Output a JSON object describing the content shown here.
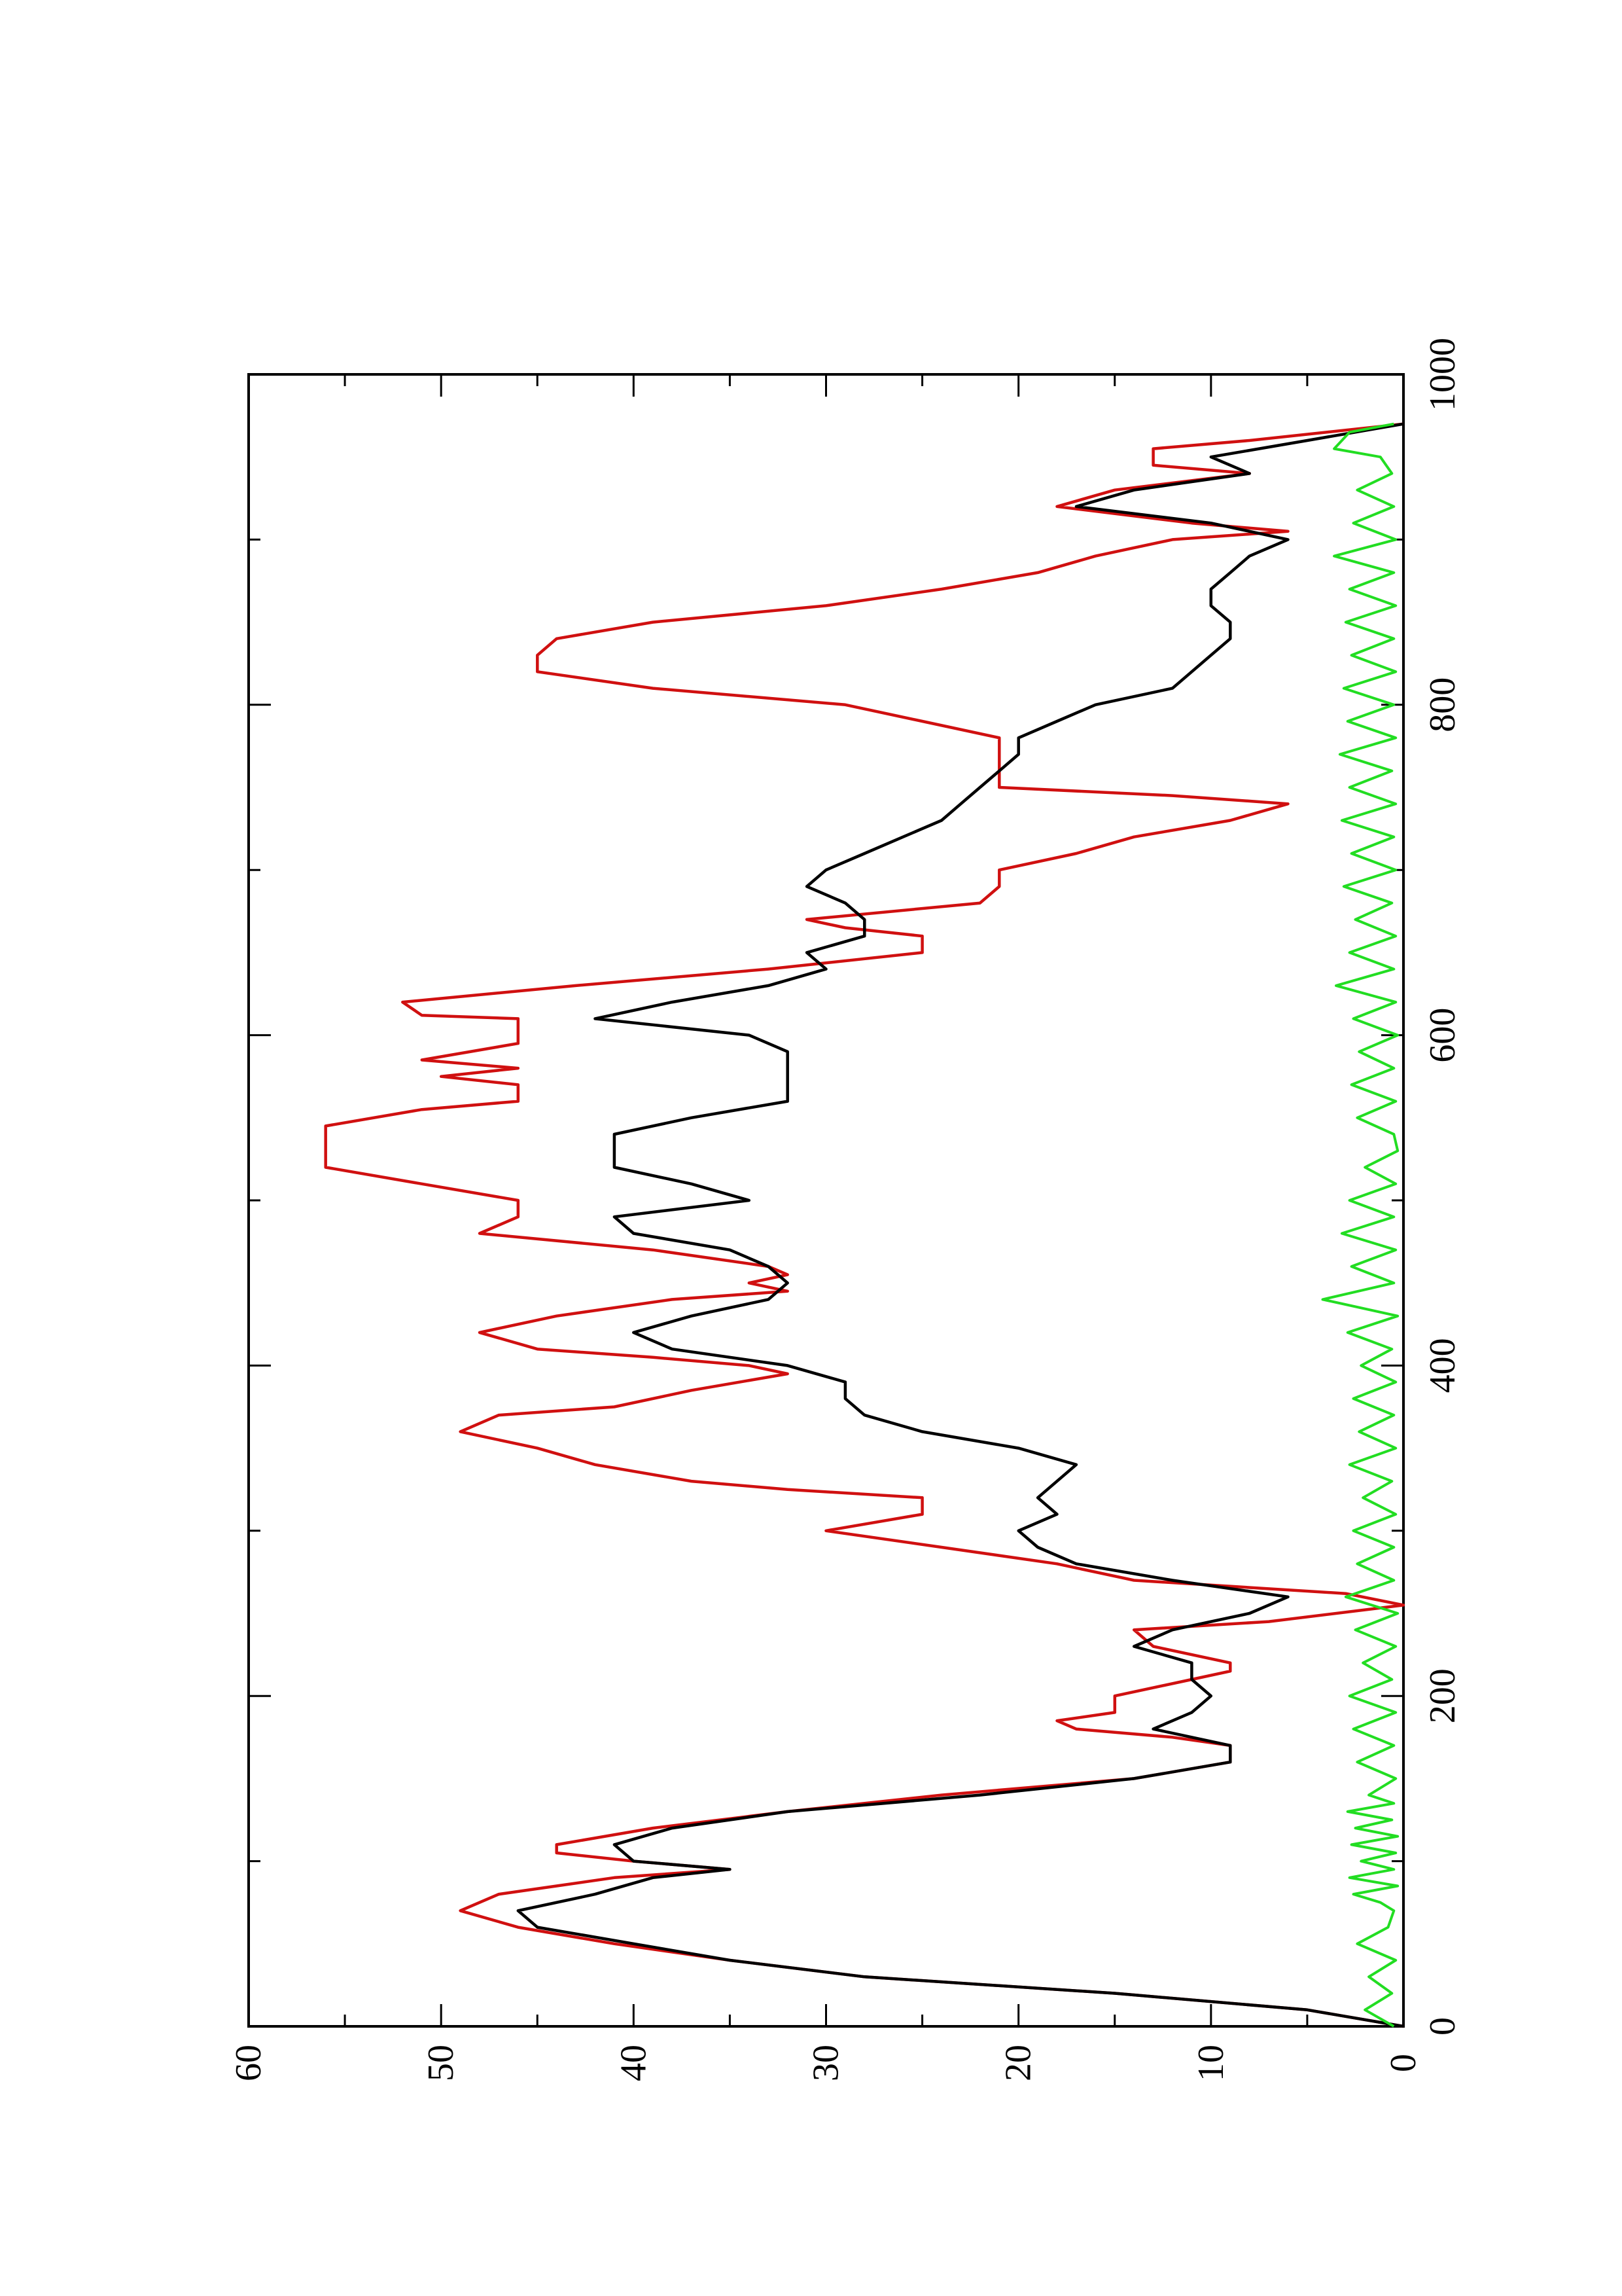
{
  "chart_data": {
    "type": "line",
    "orientation": "rotated-90-ccw",
    "title": "",
    "xlabel": "",
    "ylabel": "",
    "xlim": [
      0,
      1000
    ],
    "ylim": [
      0,
      60
    ],
    "grid": false,
    "legend": "none",
    "x_ticks": [
      0,
      200,
      400,
      600,
      800,
      1000
    ],
    "x_tick_labels": [
      "0",
      "200",
      "400",
      "600",
      "800",
      "1000"
    ],
    "x_minor_ticks": [
      100,
      300,
      500,
      700,
      900
    ],
    "y_ticks": [
      0,
      10,
      20,
      30,
      40,
      50,
      60
    ],
    "y_tick_labels": [
      "0",
      "10",
      "20",
      "30",
      "40",
      "50",
      "60"
    ],
    "y_minor_ticks": [
      5,
      15,
      25,
      35,
      45,
      55
    ],
    "series": [
      {
        "color": "#d01010",
        "points": [
          [
            0,
            0
          ],
          [
            10,
            5
          ],
          [
            20,
            15
          ],
          [
            30,
            28
          ],
          [
            40,
            35
          ],
          [
            50,
            41
          ],
          [
            60,
            46
          ],
          [
            70,
            49
          ],
          [
            80,
            47
          ],
          [
            85,
            44
          ],
          [
            90,
            41
          ],
          [
            95,
            35
          ],
          [
            100,
            40
          ],
          [
            105,
            44
          ],
          [
            110,
            44
          ],
          [
            120,
            39
          ],
          [
            130,
            32
          ],
          [
            140,
            24
          ],
          [
            150,
            14
          ],
          [
            160,
            9
          ],
          [
            170,
            9
          ],
          [
            175,
            12
          ],
          [
            180,
            17
          ],
          [
            185,
            18
          ],
          [
            190,
            15
          ],
          [
            200,
            15
          ],
          [
            210,
            11
          ],
          [
            215,
            9
          ],
          [
            220,
            9
          ],
          [
            230,
            13
          ],
          [
            240,
            14
          ],
          [
            245,
            7
          ],
          [
            255,
            0
          ],
          [
            262,
            3
          ],
          [
            270,
            14
          ],
          [
            280,
            18
          ],
          [
            290,
            24
          ],
          [
            300,
            30
          ],
          [
            310,
            25
          ],
          [
            320,
            25
          ],
          [
            325,
            32
          ],
          [
            330,
            37
          ],
          [
            340,
            42
          ],
          [
            350,
            45
          ],
          [
            360,
            49
          ],
          [
            370,
            47
          ],
          [
            375,
            41
          ],
          [
            385,
            37
          ],
          [
            395,
            32
          ],
          [
            400,
            34
          ],
          [
            405,
            39
          ],
          [
            410,
            45
          ],
          [
            420,
            48
          ],
          [
            430,
            44
          ],
          [
            440,
            38
          ],
          [
            445,
            32
          ],
          [
            450,
            34
          ],
          [
            455,
            32
          ],
          [
            460,
            33
          ],
          [
            470,
            39
          ],
          [
            480,
            48
          ],
          [
            490,
            46
          ],
          [
            500,
            46
          ],
          [
            510,
            51
          ],
          [
            520,
            56
          ],
          [
            530,
            56
          ],
          [
            545,
            56
          ],
          [
            555,
            51
          ],
          [
            560,
            46
          ],
          [
            570,
            46
          ],
          [
            575,
            50
          ],
          [
            580,
            46
          ],
          [
            585,
            51
          ],
          [
            595,
            46
          ],
          [
            610,
            46
          ],
          [
            612,
            51
          ],
          [
            620,
            52
          ],
          [
            630,
            43
          ],
          [
            640,
            33
          ],
          [
            650,
            25
          ],
          [
            660,
            25
          ],
          [
            665,
            29
          ],
          [
            670,
            31
          ],
          [
            680,
            22
          ],
          [
            690,
            21
          ],
          [
            700,
            21
          ],
          [
            710,
            17
          ],
          [
            720,
            14
          ],
          [
            730,
            9
          ],
          [
            740,
            6
          ],
          [
            745,
            12
          ],
          [
            750,
            21
          ],
          [
            760,
            21
          ],
          [
            780,
            21
          ],
          [
            790,
            25
          ],
          [
            800,
            29
          ],
          [
            810,
            39
          ],
          [
            820,
            45
          ],
          [
            830,
            45
          ],
          [
            840,
            44
          ],
          [
            850,
            39
          ],
          [
            860,
            30
          ],
          [
            870,
            24
          ],
          [
            880,
            19
          ],
          [
            890,
            16
          ],
          [
            900,
            12
          ],
          [
            905,
            6
          ],
          [
            910,
            11
          ],
          [
            920,
            18
          ],
          [
            930,
            15
          ],
          [
            940,
            8
          ],
          [
            945,
            13
          ],
          [
            955,
            13
          ],
          [
            960,
            8
          ],
          [
            970,
            0
          ]
        ]
      },
      {
        "color": "#000000",
        "points": [
          [
            0,
            0
          ],
          [
            10,
            5
          ],
          [
            20,
            15
          ],
          [
            30,
            28
          ],
          [
            40,
            35
          ],
          [
            50,
            40
          ],
          [
            60,
            45
          ],
          [
            70,
            46
          ],
          [
            80,
            42
          ],
          [
            90,
            39
          ],
          [
            95,
            35
          ],
          [
            100,
            40
          ],
          [
            110,
            41
          ],
          [
            120,
            38
          ],
          [
            130,
            32
          ],
          [
            140,
            22
          ],
          [
            150,
            14
          ],
          [
            160,
            9
          ],
          [
            170,
            9
          ],
          [
            180,
            13
          ],
          [
            190,
            11
          ],
          [
            200,
            10
          ],
          [
            210,
            11
          ],
          [
            220,
            11
          ],
          [
            230,
            14
          ],
          [
            240,
            12
          ],
          [
            250,
            8
          ],
          [
            260,
            6
          ],
          [
            270,
            12
          ],
          [
            280,
            17
          ],
          [
            290,
            19
          ],
          [
            300,
            20
          ],
          [
            310,
            18
          ],
          [
            320,
            19
          ],
          [
            330,
            18
          ],
          [
            340,
            17
          ],
          [
            350,
            20
          ],
          [
            360,
            25
          ],
          [
            370,
            28
          ],
          [
            380,
            29
          ],
          [
            390,
            29
          ],
          [
            400,
            32
          ],
          [
            410,
            38
          ],
          [
            420,
            40
          ],
          [
            430,
            37
          ],
          [
            440,
            33
          ],
          [
            450,
            32
          ],
          [
            460,
            33
          ],
          [
            470,
            35
          ],
          [
            480,
            40
          ],
          [
            490,
            41
          ],
          [
            500,
            34
          ],
          [
            510,
            37
          ],
          [
            520,
            41
          ],
          [
            530,
            41
          ],
          [
            540,
            41
          ],
          [
            550,
            37
          ],
          [
            560,
            32
          ],
          [
            570,
            32
          ],
          [
            580,
            32
          ],
          [
            590,
            32
          ],
          [
            600,
            34
          ],
          [
            610,
            42
          ],
          [
            620,
            38
          ],
          [
            630,
            33
          ],
          [
            640,
            30
          ],
          [
            650,
            31
          ],
          [
            660,
            28
          ],
          [
            670,
            28
          ],
          [
            680,
            29
          ],
          [
            690,
            31
          ],
          [
            700,
            30
          ],
          [
            710,
            28
          ],
          [
            720,
            26
          ],
          [
            730,
            24
          ],
          [
            740,
            23
          ],
          [
            750,
            22
          ],
          [
            760,
            21
          ],
          [
            770,
            20
          ],
          [
            780,
            20
          ],
          [
            790,
            18
          ],
          [
            800,
            16
          ],
          [
            810,
            12
          ],
          [
            820,
            11
          ],
          [
            830,
            10
          ],
          [
            840,
            9
          ],
          [
            850,
            9
          ],
          [
            860,
            10
          ],
          [
            870,
            10
          ],
          [
            880,
            9
          ],
          [
            890,
            8
          ],
          [
            900,
            6
          ],
          [
            910,
            10
          ],
          [
            920,
            17
          ],
          [
            930,
            14
          ],
          [
            940,
            8
          ],
          [
            950,
            10
          ],
          [
            960,
            5
          ],
          [
            970,
            0
          ]
        ]
      },
      {
        "color": "#22dd22",
        "points": [
          [
            0,
            0.5
          ],
          [
            10,
            2.0
          ],
          [
            20,
            0.6
          ],
          [
            30,
            1.8
          ],
          [
            40,
            0.4
          ],
          [
            50,
            2.4
          ],
          [
            60,
            0.8
          ],
          [
            70,
            0.5
          ],
          [
            75,
            1.2
          ],
          [
            80,
            2.6
          ],
          [
            85,
            0.3
          ],
          [
            90,
            2.8
          ],
          [
            95,
            0.5
          ],
          [
            100,
            2.2
          ],
          [
            105,
            0.4
          ],
          [
            110,
            2.7
          ],
          [
            115,
            0.3
          ],
          [
            120,
            2.5
          ],
          [
            125,
            0.6
          ],
          [
            130,
            2.9
          ],
          [
            135,
            0.5
          ],
          [
            140,
            1.8
          ],
          [
            150,
            0.4
          ],
          [
            160,
            2.4
          ],
          [
            170,
            0.5
          ],
          [
            180,
            2.6
          ],
          [
            190,
            0.4
          ],
          [
            200,
            2.8
          ],
          [
            210,
            0.6
          ],
          [
            220,
            2.1
          ],
          [
            230,
            0.4
          ],
          [
            240,
            2.5
          ],
          [
            250,
            0.3
          ],
          [
            260,
            3.0
          ],
          [
            270,
            0.5
          ],
          [
            280,
            2.4
          ],
          [
            290,
            0.5
          ],
          [
            300,
            2.6
          ],
          [
            310,
            0.4
          ],
          [
            320,
            2.1
          ],
          [
            330,
            0.6
          ],
          [
            340,
            2.8
          ],
          [
            350,
            0.4
          ],
          [
            360,
            2.3
          ],
          [
            370,
            0.5
          ],
          [
            380,
            2.6
          ],
          [
            390,
            0.4
          ],
          [
            400,
            2.2
          ],
          [
            410,
            0.6
          ],
          [
            420,
            2.9
          ],
          [
            430,
            0.3
          ],
          [
            440,
            4.2
          ],
          [
            450,
            0.5
          ],
          [
            460,
            2.7
          ],
          [
            470,
            0.4
          ],
          [
            480,
            3.2
          ],
          [
            490,
            0.5
          ],
          [
            500,
            2.8
          ],
          [
            510,
            0.4
          ],
          [
            520,
            2.0
          ],
          [
            530,
            0.3
          ],
          [
            540,
            0.5
          ],
          [
            550,
            2.4
          ],
          [
            560,
            0.4
          ],
          [
            570,
            2.7
          ],
          [
            580,
            0.5
          ],
          [
            590,
            2.3
          ],
          [
            600,
            0.3
          ],
          [
            610,
            2.6
          ],
          [
            620,
            0.4
          ],
          [
            630,
            3.5
          ],
          [
            640,
            0.5
          ],
          [
            650,
            2.8
          ],
          [
            660,
            0.4
          ],
          [
            670,
            2.5
          ],
          [
            680,
            0.6
          ],
          [
            690,
            3.1
          ],
          [
            700,
            0.4
          ],
          [
            710,
            2.7
          ],
          [
            720,
            0.5
          ],
          [
            730,
            3.2
          ],
          [
            740,
            0.4
          ],
          [
            750,
            2.8
          ],
          [
            760,
            0.6
          ],
          [
            770,
            3.3
          ],
          [
            780,
            0.4
          ],
          [
            790,
            2.9
          ],
          [
            800,
            0.5
          ],
          [
            810,
            3.1
          ],
          [
            820,
            0.4
          ],
          [
            830,
            2.7
          ],
          [
            840,
            0.5
          ],
          [
            850,
            3.0
          ],
          [
            860,
            0.4
          ],
          [
            870,
            2.8
          ],
          [
            880,
            0.5
          ],
          [
            890,
            3.6
          ],
          [
            900,
            0.4
          ],
          [
            910,
            2.6
          ],
          [
            920,
            0.5
          ],
          [
            930,
            2.4
          ],
          [
            940,
            0.6
          ],
          [
            950,
            1.2
          ],
          [
            955,
            3.6
          ],
          [
            960,
            3.2
          ],
          [
            965,
            2.8
          ],
          [
            970,
            0.5
          ]
        ]
      }
    ]
  }
}
